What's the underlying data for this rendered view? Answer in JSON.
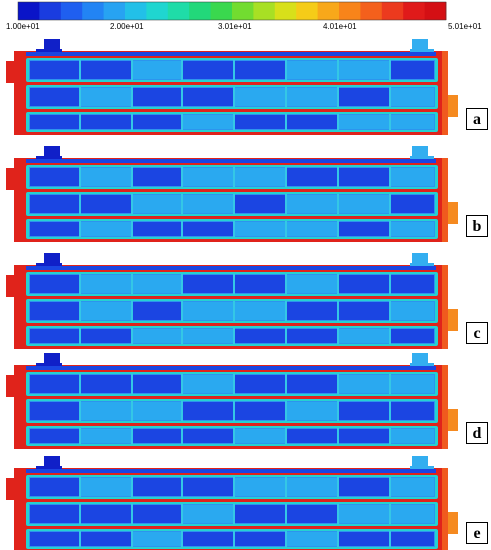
{
  "colorbar": {
    "colors": [
      "#0a14c8",
      "#1a3ce0",
      "#1f5ff0",
      "#2284f4",
      "#27a3f2",
      "#22c0e8",
      "#1fd6d0",
      "#1fdca8",
      "#22d87a",
      "#3ad84e",
      "#72dc30",
      "#a8e024",
      "#d8e01a",
      "#f5cc18",
      "#f8a81a",
      "#f8841a",
      "#f4601c",
      "#ec3a1e",
      "#e01a1a",
      "#d40f14"
    ],
    "tick_labels": [
      "1.00e+01",
      "2.00e+01",
      "3.01e+01",
      "4.01e+01",
      "5.01e+01"
    ]
  },
  "field_colors": {
    "frame": "#e0231b",
    "frame_inner": "#f05a1e",
    "frame_outer_right": "#f58a20",
    "channel_edge": "#26d1d1",
    "channel_mid": "#2d94ee",
    "cell_dark": "#1b45e2",
    "cell_light": "#2aa9f0",
    "divider": "#34c7e6",
    "port_left": "#1020c8",
    "port_right": "#33aef0"
  },
  "panels": [
    {
      "label": "a"
    },
    {
      "label": "b"
    },
    {
      "label": "c"
    },
    {
      "label": "d"
    },
    {
      "label": "e"
    }
  ]
}
